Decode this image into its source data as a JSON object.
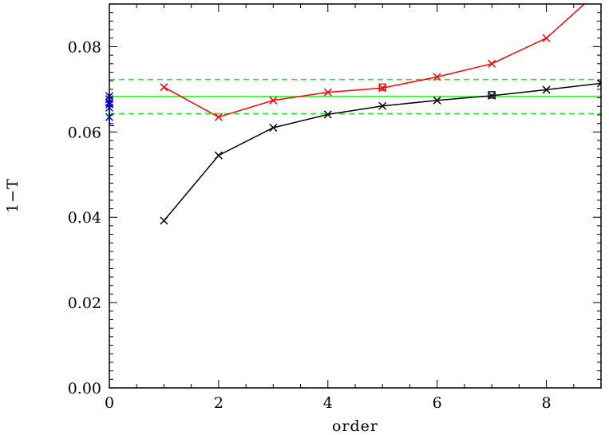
{
  "chart_data": {
    "type": "line",
    "title": "",
    "xlabel": "order",
    "ylabel": "1−T",
    "xlim": [
      0,
      9
    ],
    "ylim": [
      0,
      0.09
    ],
    "xticks": [
      0,
      2,
      4,
      6,
      8
    ],
    "xtick_labels": [
      "0",
      "2",
      "4",
      "6",
      "8"
    ],
    "yticks": [
      0,
      0.02,
      0.04,
      0.06,
      0.08
    ],
    "ytick_labels": [
      "0.00",
      "0.02",
      "0.04",
      "0.06",
      "0.08"
    ],
    "grid": false,
    "legend": "none",
    "series": [
      {
        "color": "#000000",
        "marker": "x",
        "x": [
          1,
          2,
          3,
          4,
          5,
          6,
          7,
          8,
          9
        ],
        "y": [
          0.0392,
          0.0545,
          0.061,
          0.0641,
          0.0661,
          0.0674,
          0.0685,
          0.0699,
          0.0714
        ],
        "square_marker": {
          "x": 7,
          "y": 0.0687
        }
      },
      {
        "color": "#ff0000",
        "marker": "x",
        "x": [
          1,
          2,
          3,
          4,
          5,
          6,
          7,
          8,
          9
        ],
        "y": [
          0.0705,
          0.0635,
          0.0674,
          0.0693,
          0.0703,
          0.0729,
          0.076,
          0.082,
          0.0935
        ],
        "square_marker": {
          "x": 5,
          "y": 0.0705
        }
      }
    ],
    "reference_lines": {
      "color": "#00ff00",
      "solid_y": 0.0683,
      "dashed_y": [
        0.0643,
        0.0723
      ]
    },
    "points_at_zero": {
      "color": "#0000ff",
      "x": 0,
      "y": [
        0.0635,
        0.0657,
        0.0665,
        0.0669,
        0.0677,
        0.0684
      ],
      "error_low": 0.0615,
      "error_high": 0.069
    }
  }
}
